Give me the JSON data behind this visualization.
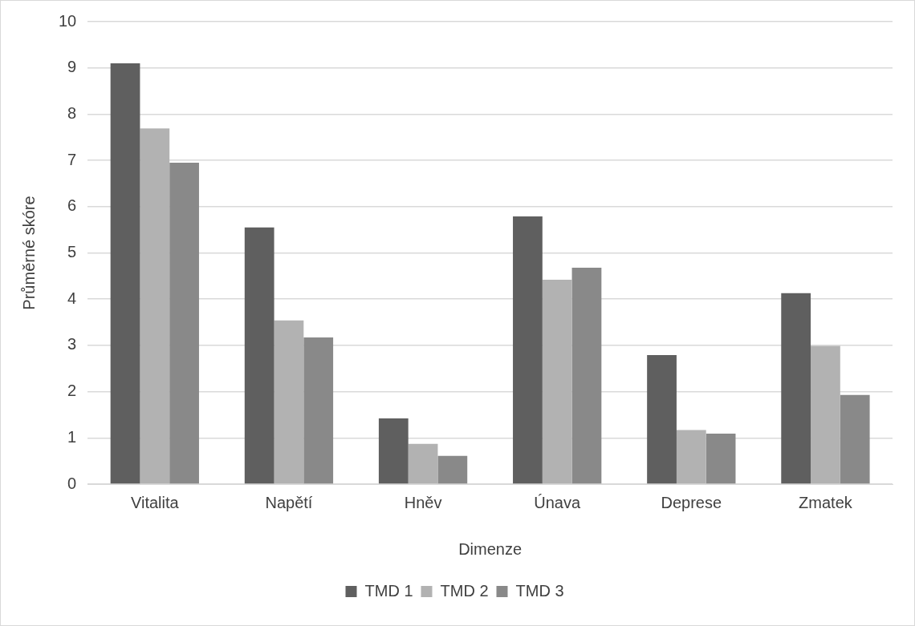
{
  "chart_data": {
    "type": "bar",
    "xlabel": "Dimenze",
    "ylabel": "Průměrné skóre",
    "categories": [
      "Vitalita",
      "Napětí",
      "Hněv",
      "Únava",
      "Deprese",
      "Zmatek"
    ],
    "series": [
      {
        "name": "TMD 1",
        "color": "#5f5f5f",
        "values": [
          9.1,
          5.55,
          1.42,
          5.79,
          2.79,
          4.13
        ]
      },
      {
        "name": "TMD 2",
        "color": "#b2b2b2",
        "values": [
          7.69,
          3.54,
          0.87,
          4.42,
          1.17,
          2.99
        ]
      },
      {
        "name": "TMD 3",
        "color": "#898989",
        "values": [
          6.95,
          3.17,
          0.61,
          4.68,
          1.09,
          1.93
        ]
      }
    ],
    "ylim": [
      0,
      10
    ],
    "yticks": [
      0,
      1,
      2,
      3,
      4,
      5,
      6,
      7,
      8,
      9,
      10
    ],
    "grid": "y",
    "legend": "bottom"
  }
}
